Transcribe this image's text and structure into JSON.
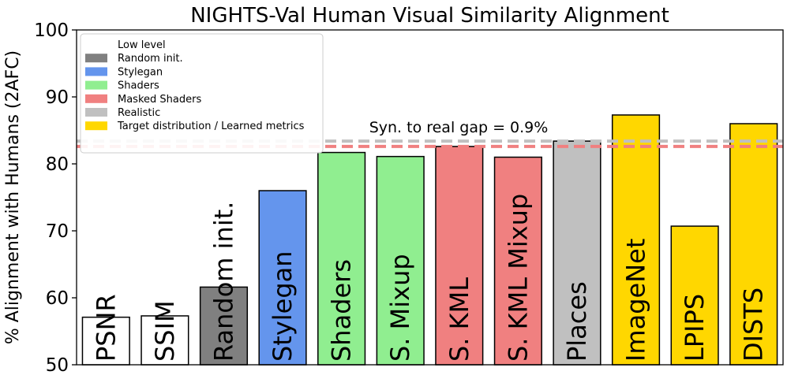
{
  "chart_data": {
    "type": "bar",
    "title": "NIGHTS-Val Human Visual Similarity Alignment",
    "ylabel": "% Alignment with Humans (2AFC)",
    "xlabel": "",
    "ylim": [
      50,
      100
    ],
    "yticks": [
      50,
      60,
      70,
      80,
      90,
      100
    ],
    "grid": false,
    "categories": [
      "PSNR",
      "SSIM",
      "Random init.",
      "Stylegan",
      "Shaders",
      "S. Mixup",
      "S. KML",
      "S. KML Mixup",
      "Places",
      "ImageNet",
      "LPIPS",
      "DISTS"
    ],
    "values": [
      57.1,
      57.3,
      61.6,
      76.0,
      81.7,
      81.1,
      82.6,
      81.0,
      83.4,
      87.3,
      70.7,
      86.0
    ],
    "bar_groups": [
      "Low level",
      "Low level",
      "Random init.",
      "Stylegan",
      "Shaders",
      "Shaders",
      "Masked Shaders",
      "Masked Shaders",
      "Realistic",
      "Target distribution / Learned metrics",
      "Target distribution / Learned metrics",
      "Target distribution / Learned metrics"
    ],
    "legend": {
      "position": "upper-left",
      "entries": [
        {
          "label": "Low level",
          "color": "#ffffff"
        },
        {
          "label": "Random init.",
          "color": "#808080"
        },
        {
          "label": "Stylegan",
          "color": "#6495ed"
        },
        {
          "label": "Shaders",
          "color": "#90ee90"
        },
        {
          "label": "Masked Shaders",
          "color": "#f08080"
        },
        {
          "label": "Realistic",
          "color": "#c0c0c0"
        },
        {
          "label": "Target distribution / Learned metrics",
          "color": "#ffd700"
        }
      ]
    },
    "reference_lines": [
      {
        "value": 83.4,
        "color": "#c0c0c0",
        "style": "dashed"
      },
      {
        "value": 82.6,
        "color": "#f08080",
        "style": "dashed"
      }
    ],
    "annotations": [
      {
        "text": "Syn. to real gap = 0.9%"
      }
    ]
  }
}
